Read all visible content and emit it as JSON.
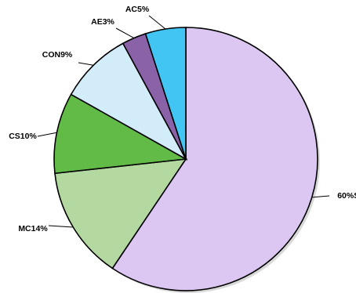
{
  "chart_data": {
    "type": "pie",
    "start_position": "top",
    "direction": "clockwise",
    "slices": [
      {
        "label": "60%SC",
        "value": 60,
        "color": "#dcc6f2"
      },
      {
        "label": "MC14%",
        "value": 14,
        "color": "#b3d9a0"
      },
      {
        "label": "CS10%",
        "value": 10,
        "color": "#62bb47"
      },
      {
        "label": "CON9%",
        "value": 9,
        "color": "#d2ecf9"
      },
      {
        "label": "AE3%",
        "value": 3,
        "color": "#8a62a8"
      },
      {
        "label": "AC5%",
        "value": 5,
        "color": "#42c5f3"
      }
    ]
  }
}
